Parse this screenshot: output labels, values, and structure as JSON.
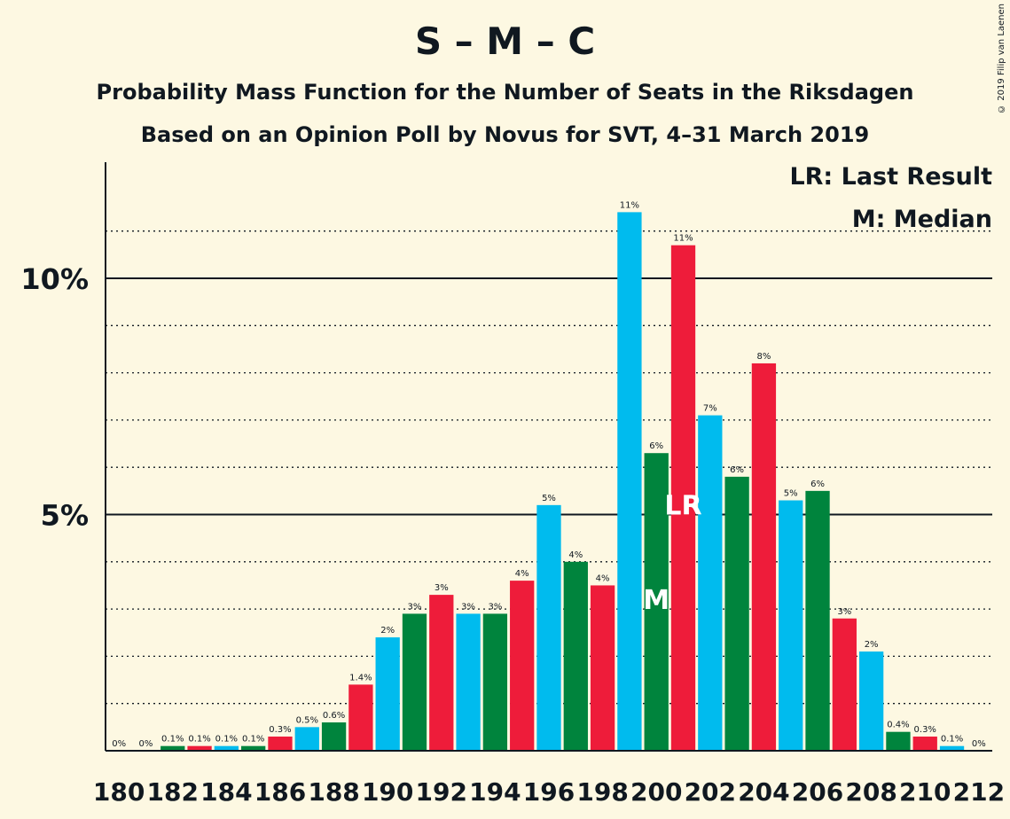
{
  "header": {
    "title": "S – M – C",
    "subtitle1": "Probability Mass Function for the Number of Seats in the Riksdagen",
    "subtitle2": "Based on an Opinion Poll by Novus for SVT, 4–31 March 2019",
    "copyright": "© 2019 Filip van Laenen"
  },
  "legend": {
    "lr": "LR: Last Result",
    "m": "M: Median"
  },
  "colors": {
    "blue": "#00bbee",
    "green": "#00843d",
    "red": "#ee1c3a",
    "background": "#fdf8e2",
    "text": "#101820"
  },
  "chart_data": {
    "type": "bar",
    "x": [
      180,
      181,
      182,
      183,
      184,
      185,
      186,
      187,
      188,
      189,
      190,
      191,
      192,
      193,
      194,
      195,
      196,
      197,
      198,
      199,
      200,
      201,
      202,
      203,
      204,
      205,
      206,
      207,
      208,
      209,
      210,
      211,
      212
    ],
    "values": [
      0,
      0,
      0.1,
      0.1,
      0.1,
      0.1,
      0.3,
      0.5,
      0.6,
      1.4,
      2.4,
      2.9,
      3.3,
      2.9,
      2.9,
      3.6,
      5.2,
      4.0,
      3.5,
      11.4,
      6.3,
      10.7,
      7.1,
      5.8,
      8.2,
      5.3,
      5.5,
      2.8,
      2.1,
      0.4,
      0.3,
      0.1,
      0
    ],
    "labels": [
      "0%",
      "0%",
      "0.1%",
      "0.1%",
      "0.1%",
      "0.1%",
      "0.3%",
      "0.5%",
      "0.6%",
      "1.4%",
      "2%",
      "3%",
      "3%",
      "3%",
      "3%",
      "4%",
      "5%",
      "4%",
      "4%",
      "11%",
      "6%",
      "11%",
      "7%",
      "6%",
      "8%",
      "5%",
      "6%",
      "3%",
      "2%",
      "0.4%",
      "0.3%",
      "0.1%",
      "0%"
    ],
    "bar_colors": [
      "blue",
      "green",
      "green",
      "red",
      "blue",
      "green",
      "red",
      "blue",
      "green",
      "red",
      "blue",
      "green",
      "red",
      "blue",
      "green",
      "red",
      "blue",
      "green",
      "red",
      "blue",
      "green",
      "red",
      "blue",
      "green",
      "red",
      "blue",
      "green",
      "red",
      "blue",
      "green",
      "red",
      "blue",
      "green"
    ],
    "x_tick_labels": [
      "180",
      "182",
      "184",
      "186",
      "188",
      "190",
      "192",
      "194",
      "196",
      "198",
      "200",
      "202",
      "204",
      "206",
      "208",
      "210",
      "212"
    ],
    "y_major_ticks": [
      {
        "value": 5,
        "label": "5%"
      },
      {
        "value": 10,
        "label": "10%"
      }
    ],
    "y_dotted_gridlines": [
      1,
      2,
      3,
      4,
      6,
      7,
      8,
      9,
      11
    ],
    "ylim": [
      0,
      12.5
    ],
    "median": {
      "x": 200,
      "label": "M"
    },
    "last_result": {
      "x": 201,
      "label": "LR"
    },
    "xlabel": "",
    "ylabel": ""
  }
}
